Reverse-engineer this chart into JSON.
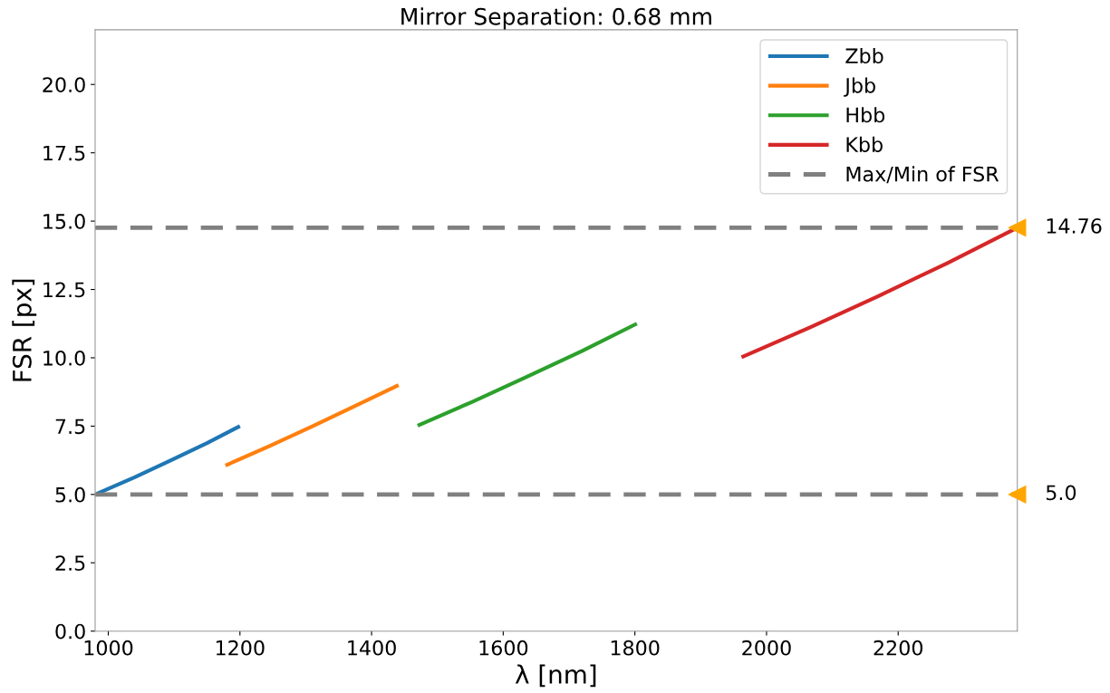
{
  "chart_data": {
    "type": "line",
    "title": "Mirror Separation: 0.68 mm",
    "xlabel": "λ [nm]",
    "ylabel": "FSR [px]",
    "series": [
      {
        "name": "Zbb",
        "color": "#1f77b4",
        "x": [
          980,
          1040,
          1090,
          1150,
          1200
        ],
        "values": [
          5.0,
          5.63,
          6.19,
          6.88,
          7.5
        ]
      },
      {
        "name": "Jbb",
        "color": "#ff7f0e",
        "x": [
          1178,
          1245,
          1310,
          1375,
          1441
        ],
        "values": [
          6.06,
          6.77,
          7.49,
          8.24,
          9.0
        ]
      },
      {
        "name": "Hbb",
        "color": "#2ca02c",
        "x": [
          1470,
          1553,
          1636,
          1720,
          1803
        ],
        "values": [
          7.52,
          8.39,
          9.31,
          10.25,
          11.25
        ]
      },
      {
        "name": "Kbb",
        "color": "#d62728",
        "x": [
          1962,
          2067,
          2170,
          2275,
          2381
        ],
        "values": [
          10.02,
          11.12,
          12.26,
          13.47,
          14.76
        ]
      }
    ],
    "ref_lines": [
      {
        "axis": "y",
        "value": 14.76,
        "label": "Max/Min of FSR",
        "color": "#808080",
        "line_style": "dashed"
      },
      {
        "axis": "y",
        "value": 5.0,
        "color": "#808080",
        "line_style": "dashed"
      }
    ],
    "annotations": [
      {
        "text": "14.76",
        "x": 2381,
        "y": 14.76
      },
      {
        "text": "5.0",
        "x": 2381,
        "y": 5.0
      }
    ],
    "xlim": [
      980,
      2381
    ],
    "xticks": [
      1000,
      1200,
      1400,
      1600,
      1800,
      2000,
      2200
    ],
    "ylim": [
      0,
      22
    ],
    "yticks": [
      {
        "value": 0,
        "label": "0.0"
      },
      2.5,
      {
        "value": 5,
        "label": "5.0"
      },
      7.5,
      {
        "value": 10,
        "label": "10.0"
      },
      12.5,
      {
        "value": 15,
        "label": "15.0"
      },
      17.5,
      {
        "value": 20,
        "label": "20.0"
      }
    ],
    "legend": "top right",
    "grid": false,
    "marker": "none",
    "line_style": "solid"
  }
}
